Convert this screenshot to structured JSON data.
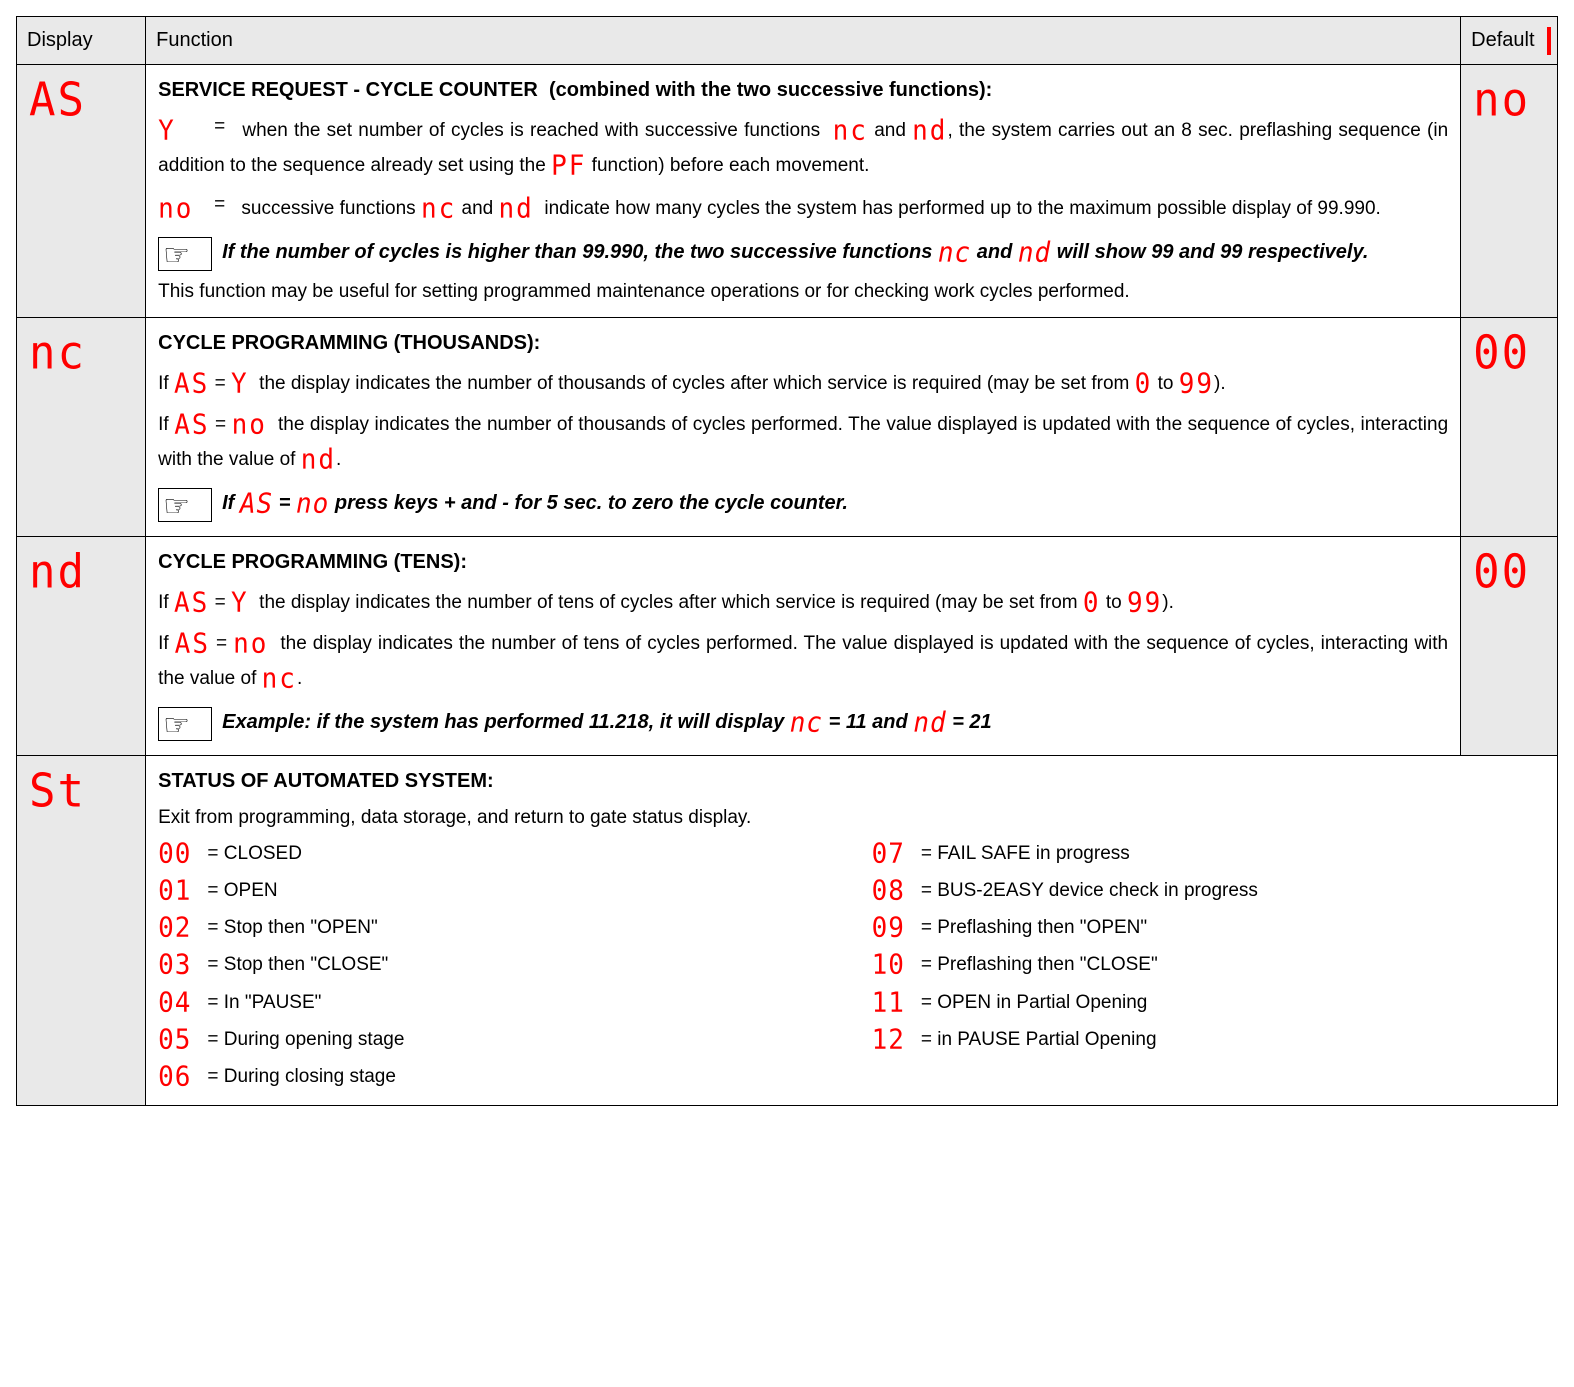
{
  "colors": {
    "seg_red": "#ff0000",
    "header_bg": "#e9e9e9",
    "border": "#000000",
    "page_bg": "#ffffff",
    "text": "#000000"
  },
  "fontsizes": {
    "body": 19,
    "title": 20,
    "seg_big": 44,
    "seg_inline": 26
  },
  "headers": {
    "display": "Display",
    "function": "Function",
    "default": "Default"
  },
  "rows": {
    "AS": {
      "display": "AS",
      "default": "no",
      "title": "SERVICE REQUEST - CYCLE COUNTER",
      "title_suffix": "(combined with the two successive functions):",
      "y": {
        "code": "Y",
        "text_a": "when the set number of cycles is reached with successive functions",
        "nc": "nc",
        "and": "and",
        "nd": "nd",
        "text_b": ", the system carries out an 8 sec. preflashing sequence (in addition to the sequence already set using the",
        "pf": "PF",
        "text_c": "function) before each movement."
      },
      "no": {
        "code": "no",
        "text_a": "successive functions",
        "nc": "nc",
        "and": "and",
        "nd": "nd",
        "text_b": "indicate how many cycles the system has performed up to the maximum possible display of 99.990."
      },
      "note_a": "If the number of cycles is higher than 99.990, the two successive functions",
      "note_nc": "nc",
      "note_and": "and",
      "note_nd": "nd",
      "note_b": "will show 99 and 99 respectively.",
      "footer": "This function may be useful for setting programmed maintenance operations or for checking work cycles performed."
    },
    "nc": {
      "display": "nc",
      "default": "00",
      "title": "CYCLE PROGRAMMING (THOUSANDS):",
      "if_y_a": "If",
      "AS": "AS",
      "eq": "=",
      "Y": "Y",
      "if_y_b": "the display indicates the number of thousands of cycles after which service is required (may be set from",
      "zero": "0",
      "to": "to",
      "nn": "99",
      "close": ").",
      "if_no_a": "If",
      "no": "no",
      "if_no_b": "the display indicates the number of thousands of cycles performed. The value displayed is updated with the sequence of cycles, interacting with the value of",
      "nd": "nd",
      "period": ".",
      "note": "press keys + and - for 5 sec. to zero the cycle counter.",
      "note_prefix": "If"
    },
    "nd": {
      "display": "nd",
      "default": "00",
      "title": "CYCLE PROGRAMMING (TENS):",
      "if_y_b": "the display indicates the number of tens of cycles after which service is required (may be set from",
      "if_no_b": "the display indicates the number of tens of cycles performed. The value displayed is updated with the sequence of cycles, interacting with the value of",
      "nc": "nc",
      "note_a": "Example: if the system has performed 11.218, it will display",
      "note_nc": "nc",
      "note_eq1": "= 11 and",
      "note_nd": "nd",
      "note_eq2": "= 21"
    },
    "St": {
      "display": "St",
      "title": "STATUS OF AUTOMATED SYSTEM:",
      "sub": "Exit from programming, data storage, and return to gate status display.",
      "left": [
        {
          "c": "00",
          "t": "CLOSED"
        },
        {
          "c": "01",
          "t": "OPEN"
        },
        {
          "c": "02",
          "t": "Stop then  \"OPEN\""
        },
        {
          "c": "03",
          "t": "Stop then  \"CLOSE\""
        },
        {
          "c": "04",
          "t": "In \"PAUSE\""
        },
        {
          "c": "05",
          "t": "During opening stage"
        },
        {
          "c": "06",
          "t": "During closing stage"
        }
      ],
      "right": [
        {
          "c": "07",
          "t": "FAIL SAFE in progress"
        },
        {
          "c": "08",
          "t": "BUS-2EASY device check in progress"
        },
        {
          "c": "09",
          "t": "Preflashing then \"OPEN\""
        },
        {
          "c": "10",
          "t": "Preflashing then \"CLOSE\""
        },
        {
          "c": "11",
          "t": "OPEN in Partial Opening"
        },
        {
          "c": "12",
          "t": "in PAUSE Partial Opening"
        }
      ]
    }
  }
}
